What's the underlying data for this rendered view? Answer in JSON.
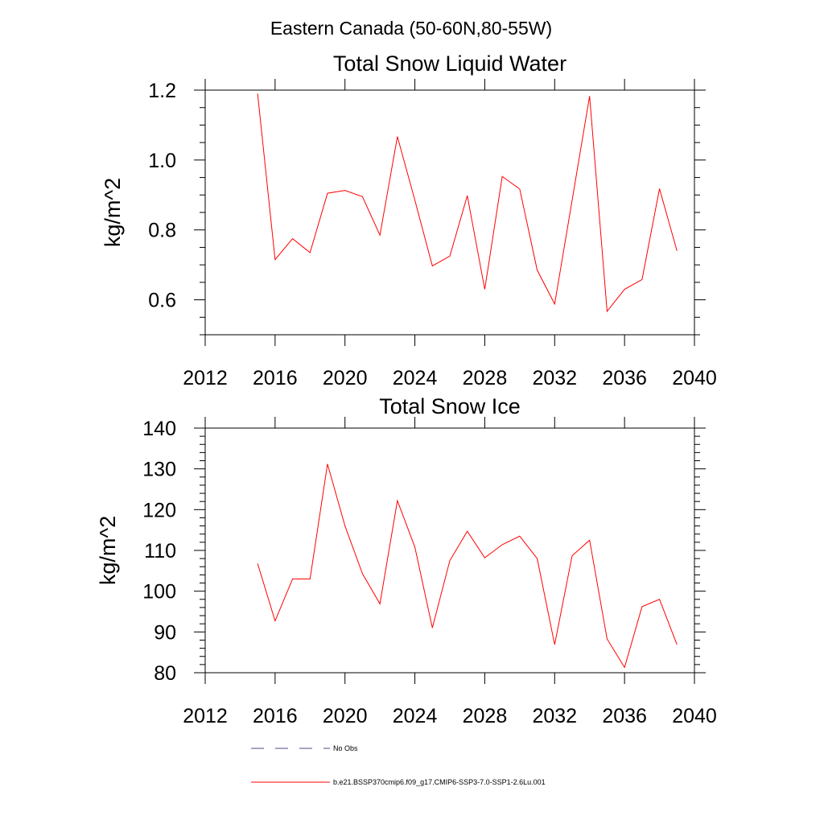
{
  "figure": {
    "suptitle": "Eastern Canada (50-60N,80-55W)"
  },
  "chart_data": [
    {
      "type": "line",
      "title": "Total Snow Liquid Water",
      "xlabel": "",
      "ylabel": "kg/m^2",
      "xlim": [
        2012,
        2040
      ],
      "ylim": [
        0.5,
        1.2
      ],
      "x_ticks": [
        2012,
        2016,
        2020,
        2024,
        2028,
        2032,
        2036,
        2040
      ],
      "x_tick_labels": [
        "2012",
        "2016",
        "2020",
        "2024",
        "2028",
        "2032",
        "2036",
        "2040"
      ],
      "y_ticks": [
        0.6,
        0.8,
        1.0,
        1.2
      ],
      "y_tick_labels": [
        "0.6",
        "0.8",
        "1.0",
        "1.2"
      ],
      "x": [
        2015,
        2016,
        2017,
        2018,
        2019,
        2020,
        2021,
        2022,
        2023,
        2024,
        2025,
        2026,
        2027,
        2028,
        2029,
        2030,
        2031,
        2032,
        2033,
        2034,
        2035,
        2036,
        2037,
        2038,
        2039
      ],
      "series": [
        {
          "name": "b.e21.BSSP370cmip6.f09_g17.CMIP6-SSP3-7.0-SSP1-2.6Lu.001",
          "color": "#ff0000",
          "values": [
            1.19,
            0.715,
            0.775,
            0.735,
            0.905,
            0.913,
            0.895,
            0.785,
            1.067,
            0.885,
            0.697,
            0.725,
            0.898,
            0.63,
            0.953,
            0.917,
            0.685,
            0.588,
            0.885,
            1.183,
            0.567,
            0.63,
            0.658,
            0.918,
            0.74
          ]
        }
      ],
      "grid": false
    },
    {
      "type": "line",
      "title": "Total Snow Ice",
      "xlabel": "",
      "ylabel": "kg/m^2",
      "xlim": [
        2012,
        2040
      ],
      "ylim": [
        80,
        140
      ],
      "x_ticks": [
        2012,
        2016,
        2020,
        2024,
        2028,
        2032,
        2036,
        2040
      ],
      "x_tick_labels": [
        "2012",
        "2016",
        "2020",
        "2024",
        "2028",
        "2032",
        "2036",
        "2040"
      ],
      "y_ticks": [
        80,
        90,
        100,
        110,
        120,
        130,
        140
      ],
      "y_tick_labels": [
        "80",
        "90",
        "100",
        "110",
        "120",
        "130",
        "140"
      ],
      "x": [
        2015,
        2016,
        2017,
        2018,
        2019,
        2020,
        2021,
        2022,
        2023,
        2024,
        2025,
        2026,
        2027,
        2028,
        2029,
        2030,
        2031,
        2032,
        2033,
        2034,
        2035,
        2036,
        2037,
        2038,
        2039
      ],
      "series": [
        {
          "name": "b.e21.BSSP370cmip6.f09_g17.CMIP6-SSP3-7.0-SSP1-2.6Lu.001",
          "color": "#ff0000",
          "values": [
            106.8,
            92.7,
            103.0,
            103.0,
            131.2,
            116.0,
            104.3,
            96.9,
            122.2,
            110.8,
            91.0,
            107.5,
            114.7,
            108.2,
            111.4,
            113.5,
            108.0,
            86.9,
            108.7,
            112.5,
            88.3,
            81.3,
            96.2,
            98.0,
            86.9
          ]
        }
      ],
      "grid": false
    }
  ],
  "legend": {
    "placement": "bottom",
    "entries": [
      {
        "label": "No Obs",
        "color": "#4a4a8a",
        "dash": "dashed"
      },
      {
        "label": "b.e21.BSSP370cmip6.f09_g17.CMIP6-SSP3-7.0-SSP1-2.6Lu.001",
        "color": "#ff0000",
        "dash": "solid"
      }
    ]
  }
}
